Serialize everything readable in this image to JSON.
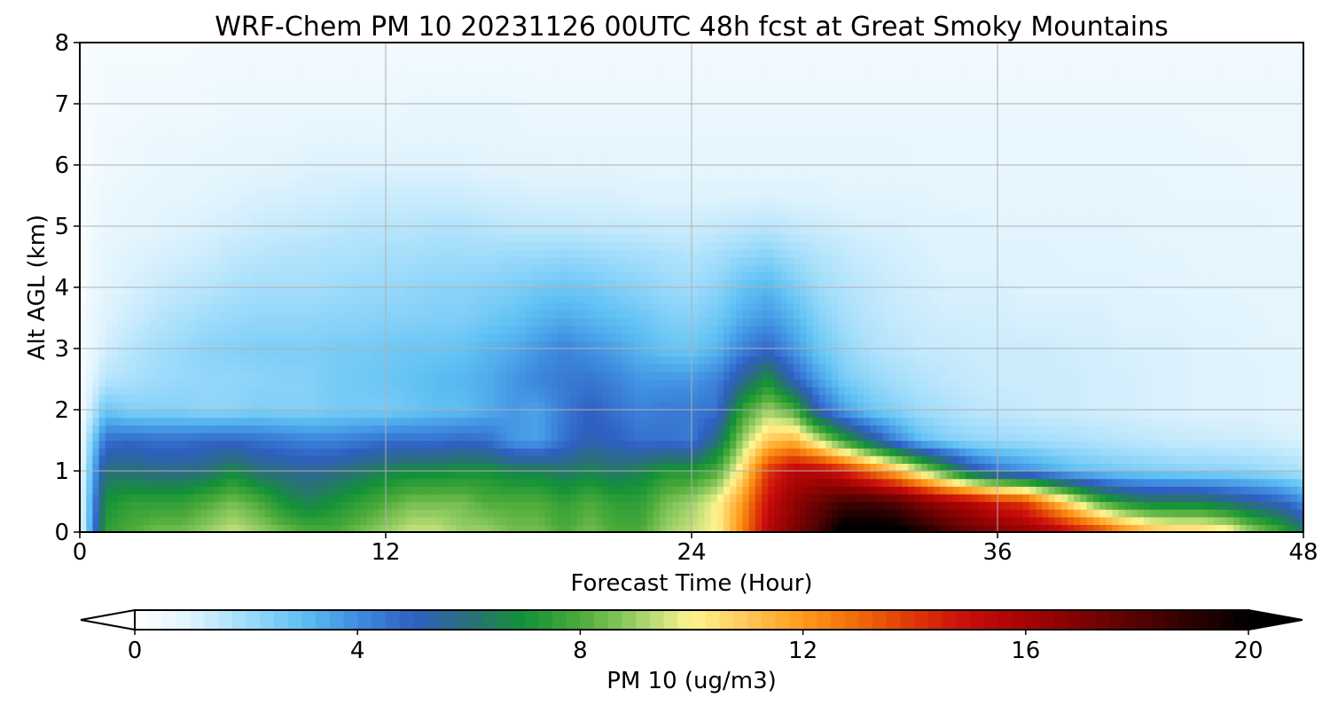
{
  "chart_data": {
    "type": "heatmap",
    "title": "WRF-Chem PM 10  20231126 00UTC 48h fcst at Great Smoky Mountains",
    "xlabel": "Forecast Time (Hour)",
    "ylabel": "Alt AGL (km)",
    "xlim": [
      0,
      48
    ],
    "ylim": [
      0,
      8
    ],
    "xticks": [
      "0",
      "12",
      "24",
      "36",
      "48"
    ],
    "yticks": [
      "0",
      "1",
      "2",
      "3",
      "4",
      "5",
      "6",
      "7",
      "8"
    ],
    "grid": true,
    "colorbar": {
      "label": "PM 10  (ug/m3)",
      "range": [
        0,
        20
      ],
      "ticks": [
        "0",
        "4",
        "8",
        "12",
        "16",
        "20"
      ],
      "extend": "both",
      "stops": [
        {
          "v": 0,
          "c": "#ffffff"
        },
        {
          "v": 1,
          "c": "#dff3fd"
        },
        {
          "v": 2,
          "c": "#9fdcfb"
        },
        {
          "v": 3,
          "c": "#5ec0f3"
        },
        {
          "v": 4,
          "c": "#3f8de0"
        },
        {
          "v": 5,
          "c": "#2f5fc2"
        },
        {
          "v": 6,
          "c": "#2a6f7a"
        },
        {
          "v": 7,
          "c": "#139236"
        },
        {
          "v": 8,
          "c": "#4cab3a"
        },
        {
          "v": 9,
          "c": "#9bd067"
        },
        {
          "v": 10,
          "c": "#fff590"
        },
        {
          "v": 11,
          "c": "#ffc758"
        },
        {
          "v": 12,
          "c": "#ff9a1a"
        },
        {
          "v": 13,
          "c": "#ee6a09"
        },
        {
          "v": 14,
          "c": "#de3508"
        },
        {
          "v": 15,
          "c": "#c70c0c"
        },
        {
          "v": 16,
          "c": "#a50404"
        },
        {
          "v": 17,
          "c": "#7e0303"
        },
        {
          "v": 18,
          "c": "#560202"
        },
        {
          "v": 19,
          "c": "#2c0101"
        },
        {
          "v": 20,
          "c": "#000000"
        }
      ]
    },
    "x": [
      0,
      1,
      2,
      3,
      4,
      5,
      6,
      7,
      8,
      9,
      10,
      11,
      12,
      13,
      14,
      15,
      16,
      17,
      18,
      19,
      20,
      21,
      22,
      23,
      24,
      25,
      26,
      27,
      28,
      29,
      30,
      31,
      32,
      33,
      34,
      35,
      36,
      37,
      38,
      39,
      40,
      41,
      42,
      43,
      44,
      45,
      46,
      47,
      48
    ],
    "y": [
      0,
      0.5,
      1,
      1.5,
      2,
      2.5,
      3,
      3.5,
      4,
      4.5,
      5,
      5.5,
      6,
      6.5,
      7,
      7.5,
      8
    ],
    "profiles": [
      {
        "z": 0.0,
        "values": [
          0.5,
          7.5,
          8.0,
          8.5,
          8.5,
          9.0,
          9.5,
          9.0,
          8.5,
          8.0,
          8.0,
          8.5,
          9.0,
          9.5,
          9.5,
          9.0,
          9.0,
          8.5,
          8.5,
          8.0,
          8.5,
          8.0,
          8.0,
          9.0,
          9.5,
          10.0,
          12.5,
          15.5,
          17.0,
          18.5,
          20.5,
          20.5,
          20.5,
          19.5,
          18.5,
          17.5,
          17.0,
          16.5,
          16.0,
          15.0,
          14.0,
          12.5,
          11.5,
          11.0,
          11.0,
          10.5,
          9.0,
          8.0,
          6.5
        ]
      },
      {
        "z": 0.5,
        "values": [
          0.5,
          7.0,
          7.5,
          7.5,
          7.5,
          8.0,
          8.5,
          8.0,
          7.0,
          6.5,
          7.0,
          7.5,
          8.0,
          8.5,
          8.5,
          8.5,
          8.0,
          8.0,
          8.0,
          7.5,
          8.0,
          7.5,
          7.5,
          8.5,
          9.0,
          10.0,
          12.0,
          15.0,
          16.5,
          17.5,
          18.5,
          18.5,
          18.0,
          17.0,
          16.0,
          15.5,
          14.5,
          14.0,
          12.0,
          10.0,
          8.0,
          7.0,
          6.5,
          6.5,
          6.5,
          6.0,
          5.5,
          5.0,
          4.0
        ]
      },
      {
        "z": 1.0,
        "values": [
          0.5,
          6.0,
          6.0,
          5.8,
          5.8,
          6.0,
          6.8,
          6.0,
          5.8,
          5.6,
          5.8,
          6.2,
          6.6,
          6.8,
          6.8,
          7.0,
          7.0,
          6.6,
          6.6,
          6.2,
          6.6,
          6.2,
          6.6,
          7.2,
          7.2,
          8.0,
          10.5,
          14.0,
          15.5,
          15.5,
          14.5,
          13.0,
          11.5,
          9.5,
          7.5,
          5.5,
          4.5,
          4.0,
          3.5,
          3.0,
          2.8,
          2.6,
          2.5,
          2.4,
          2.3,
          2.3,
          2.2,
          2.0,
          1.8
        ]
      },
      {
        "z": 1.5,
        "values": [
          0.5,
          4.6,
          4.8,
          4.6,
          4.6,
          4.8,
          4.8,
          4.6,
          4.4,
          4.2,
          4.2,
          4.4,
          4.6,
          4.6,
          4.6,
          4.8,
          4.6,
          3.8,
          3.6,
          4.6,
          5.2,
          5.0,
          4.6,
          4.6,
          4.4,
          6.0,
          9.0,
          11.0,
          11.5,
          9.5,
          7.5,
          5.8,
          4.2,
          3.0,
          2.5,
          2.2,
          2.1,
          2.0,
          1.9,
          1.8,
          1.7,
          1.6,
          1.5,
          1.4,
          1.4,
          1.3,
          1.3,
          1.2,
          1.1
        ]
      },
      {
        "z": 2.0,
        "values": [
          0.3,
          2.8,
          2.4,
          2.4,
          2.4,
          2.2,
          2.3,
          2.5,
          2.4,
          2.4,
          2.6,
          2.6,
          2.6,
          2.8,
          3.0,
          3.0,
          3.4,
          3.8,
          3.6,
          4.4,
          5.0,
          4.6,
          4.2,
          4.4,
          4.4,
          4.6,
          7.6,
          9.0,
          8.0,
          5.0,
          3.6,
          2.8,
          2.4,
          2.0,
          1.8,
          1.6,
          1.5,
          1.4,
          1.3,
          1.3,
          1.2,
          1.2,
          1.1,
          1.1,
          1.0,
          1.0,
          1.0,
          0.9,
          0.9
        ]
      },
      {
        "z": 2.5,
        "values": [
          0.3,
          1.6,
          1.8,
          2.0,
          2.1,
          2.2,
          2.2,
          2.3,
          2.4,
          2.4,
          2.6,
          2.7,
          2.8,
          2.9,
          3.1,
          3.2,
          3.4,
          3.8,
          4.2,
          4.4,
          4.5,
          4.2,
          3.8,
          3.8,
          3.8,
          4.2,
          5.6,
          7.0,
          5.0,
          3.6,
          2.6,
          2.2,
          1.9,
          1.7,
          1.5,
          1.4,
          1.3,
          1.3,
          1.3,
          1.3,
          1.2,
          1.2,
          1.1,
          1.1,
          1.0,
          1.0,
          1.0,
          0.9,
          0.9
        ]
      },
      {
        "z": 3.0,
        "values": [
          0.3,
          1.2,
          1.6,
          1.9,
          2.1,
          2.3,
          2.4,
          2.5,
          2.5,
          2.5,
          2.6,
          2.6,
          2.7,
          2.8,
          2.8,
          2.9,
          3.2,
          3.4,
          3.8,
          4.2,
          3.9,
          3.6,
          3.2,
          2.9,
          2.8,
          3.2,
          4.2,
          4.8,
          3.8,
          2.8,
          2.2,
          1.8,
          1.6,
          1.4,
          1.4,
          1.3,
          1.3,
          1.3,
          1.3,
          1.2,
          1.2,
          1.1,
          1.1,
          1.1,
          1.0,
          1.0,
          0.9,
          0.9,
          0.9
        ]
      },
      {
        "z": 3.5,
        "values": [
          0.3,
          1.0,
          1.3,
          1.6,
          1.8,
          2.0,
          2.1,
          2.2,
          2.2,
          2.2,
          2.3,
          2.3,
          2.4,
          2.4,
          2.5,
          2.5,
          2.7,
          2.9,
          3.2,
          3.4,
          3.2,
          3.0,
          2.8,
          2.5,
          2.4,
          2.7,
          3.4,
          3.8,
          3.2,
          2.4,
          1.9,
          1.6,
          1.4,
          1.3,
          1.2,
          1.2,
          1.2,
          1.1,
          1.1,
          1.1,
          1.1,
          1.0,
          1.0,
          1.0,
          0.9,
          0.9,
          0.9,
          0.8,
          0.8
        ]
      },
      {
        "z": 4.0,
        "values": [
          0.2,
          0.9,
          1.1,
          1.3,
          1.5,
          1.6,
          1.8,
          1.9,
          1.9,
          1.9,
          2.0,
          2.1,
          2.1,
          2.2,
          2.3,
          2.3,
          2.4,
          2.5,
          2.7,
          2.8,
          2.7,
          2.5,
          2.3,
          2.1,
          2.0,
          2.3,
          2.9,
          3.2,
          2.6,
          2.0,
          1.7,
          1.5,
          1.3,
          1.2,
          1.1,
          1.1,
          1.1,
          1.0,
          1.0,
          1.0,
          1.0,
          1.0,
          0.9,
          0.9,
          0.9,
          0.9,
          0.8,
          0.8,
          0.8
        ]
      },
      {
        "z": 4.5,
        "values": [
          0.2,
          0.8,
          1.0,
          1.1,
          1.2,
          1.3,
          1.5,
          1.6,
          1.7,
          1.7,
          1.8,
          1.8,
          1.9,
          1.9,
          2.0,
          2.0,
          2.0,
          2.1,
          2.1,
          2.2,
          2.1,
          2.0,
          1.9,
          1.8,
          1.7,
          1.9,
          2.2,
          2.4,
          2.0,
          1.7,
          1.5,
          1.3,
          1.2,
          1.1,
          1.0,
          1.0,
          1.0,
          1.0,
          1.0,
          0.9,
          0.9,
          0.9,
          0.9,
          0.9,
          0.8,
          0.8,
          0.8,
          0.8,
          0.8
        ]
      },
      {
        "z": 5.0,
        "values": [
          0.2,
          0.7,
          0.8,
          0.9,
          1.0,
          1.1,
          1.2,
          1.3,
          1.4,
          1.4,
          1.5,
          1.6,
          1.6,
          1.6,
          1.7,
          1.7,
          1.6,
          1.5,
          1.5,
          1.5,
          1.4,
          1.4,
          1.4,
          1.3,
          1.3,
          1.4,
          1.5,
          1.6,
          1.4,
          1.3,
          1.2,
          1.1,
          1.1,
          1.0,
          1.0,
          1.0,
          0.9,
          0.9,
          0.9,
          0.9,
          0.9,
          0.9,
          0.8,
          0.8,
          0.8,
          0.8,
          0.8,
          0.7,
          0.7
        ]
      },
      {
        "z": 5.5,
        "values": [
          0.2,
          0.6,
          0.7,
          0.8,
          0.8,
          0.9,
          1.0,
          1.1,
          1.1,
          1.2,
          1.2,
          1.3,
          1.3,
          1.3,
          1.3,
          1.3,
          1.2,
          1.2,
          1.1,
          1.1,
          1.1,
          1.1,
          1.0,
          1.0,
          1.0,
          1.0,
          1.0,
          1.0,
          1.0,
          1.0,
          0.9,
          0.9,
          0.9,
          0.9,
          0.8,
          0.8,
          0.8,
          0.8,
          0.8,
          0.8,
          0.8,
          0.8,
          0.8,
          0.7,
          0.7,
          0.7,
          0.7,
          0.7,
          0.7
        ]
      },
      {
        "z": 6.0,
        "values": [
          0.2,
          0.5,
          0.6,
          0.7,
          0.7,
          0.8,
          0.8,
          0.9,
          0.9,
          1.0,
          1.0,
          1.0,
          1.0,
          1.0,
          1.0,
          1.0,
          0.9,
          0.9,
          0.9,
          0.9,
          0.9,
          0.9,
          0.8,
          0.8,
          0.8,
          0.8,
          0.8,
          0.8,
          0.8,
          0.8,
          0.8,
          0.8,
          0.8,
          0.7,
          0.7,
          0.7,
          0.7,
          0.7,
          0.7,
          0.7,
          0.7,
          0.7,
          0.7,
          0.7,
          0.7,
          0.7,
          0.6,
          0.6,
          0.6
        ]
      },
      {
        "z": 6.5,
        "values": [
          0.2,
          0.5,
          0.5,
          0.6,
          0.6,
          0.6,
          0.7,
          0.7,
          0.7,
          0.8,
          0.8,
          0.8,
          0.8,
          0.8,
          0.8,
          0.8,
          0.8,
          0.8,
          0.7,
          0.7,
          0.7,
          0.7,
          0.7,
          0.7,
          0.7,
          0.7,
          0.7,
          0.7,
          0.7,
          0.7,
          0.7,
          0.7,
          0.7,
          0.7,
          0.7,
          0.7,
          0.7,
          0.7,
          0.7,
          0.7,
          0.7,
          0.7,
          0.7,
          0.7,
          0.6,
          0.6,
          0.6,
          0.6,
          0.6
        ]
      },
      {
        "z": 7.0,
        "values": [
          0.2,
          0.4,
          0.5,
          0.5,
          0.5,
          0.5,
          0.6,
          0.6,
          0.6,
          0.6,
          0.6,
          0.6,
          0.6,
          0.7,
          0.7,
          0.7,
          0.7,
          0.7,
          0.6,
          0.6,
          0.6,
          0.6,
          0.6,
          0.6,
          0.6,
          0.6,
          0.6,
          0.6,
          0.6,
          0.6,
          0.6,
          0.6,
          0.6,
          0.6,
          0.6,
          0.6,
          0.6,
          0.6,
          0.6,
          0.6,
          0.6,
          0.6,
          0.6,
          0.6,
          0.6,
          0.6,
          0.6,
          0.6,
          0.6
        ]
      },
      {
        "z": 7.5,
        "values": [
          0.2,
          0.4,
          0.4,
          0.4,
          0.4,
          0.5,
          0.5,
          0.5,
          0.5,
          0.5,
          0.5,
          0.5,
          0.5,
          0.5,
          0.5,
          0.5,
          0.5,
          0.5,
          0.5,
          0.5,
          0.5,
          0.5,
          0.5,
          0.5,
          0.5,
          0.5,
          0.5,
          0.5,
          0.5,
          0.5,
          0.5,
          0.5,
          0.5,
          0.5,
          0.5,
          0.5,
          0.5,
          0.5,
          0.5,
          0.5,
          0.5,
          0.5,
          0.5,
          0.5,
          0.5,
          0.5,
          0.5,
          0.5,
          0.5
        ]
      },
      {
        "z": 8.0,
        "values": [
          0.2,
          0.3,
          0.3,
          0.3,
          0.3,
          0.4,
          0.4,
          0.4,
          0.4,
          0.4,
          0.4,
          0.4,
          0.4,
          0.4,
          0.4,
          0.4,
          0.4,
          0.4,
          0.4,
          0.4,
          0.4,
          0.4,
          0.4,
          0.4,
          0.4,
          0.4,
          0.4,
          0.4,
          0.4,
          0.4,
          0.4,
          0.4,
          0.4,
          0.4,
          0.4,
          0.4,
          0.4,
          0.4,
          0.4,
          0.4,
          0.4,
          0.4,
          0.4,
          0.4,
          0.4,
          0.4,
          0.4,
          0.4,
          0.4
        ]
      }
    ]
  }
}
